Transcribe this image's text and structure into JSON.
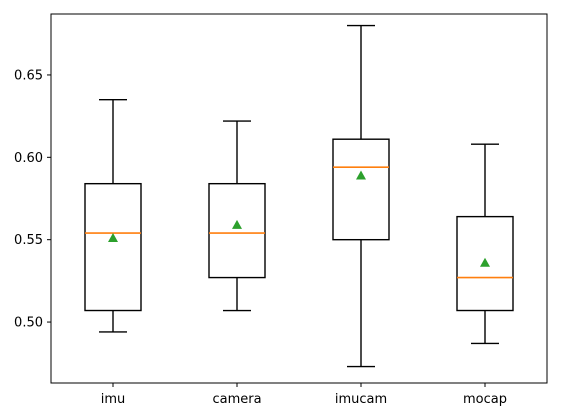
{
  "chart_data": {
    "type": "box",
    "title": "",
    "xlabel": "",
    "ylabel": "",
    "categories": [
      "imu",
      "camera",
      "imucam",
      "mocap"
    ],
    "ylim": [
      0.463,
      0.687
    ],
    "yticks": [
      0.5,
      0.55,
      0.6,
      0.65
    ],
    "ytick_labels": [
      "0.50",
      "0.55",
      "0.60",
      "0.65"
    ],
    "grid": false,
    "boxes": [
      {
        "category": "imu",
        "whisker_low": 0.494,
        "q1": 0.507,
        "median": 0.554,
        "q3": 0.584,
        "whisker_high": 0.635,
        "mean": 0.551
      },
      {
        "category": "camera",
        "whisker_low": 0.507,
        "q1": 0.527,
        "median": 0.554,
        "q3": 0.584,
        "whisker_high": 0.622,
        "mean": 0.559
      },
      {
        "category": "imucam",
        "whisker_low": 0.473,
        "q1": 0.55,
        "median": 0.594,
        "q3": 0.611,
        "whisker_high": 0.68,
        "mean": 0.589
      },
      {
        "category": "mocap",
        "whisker_low": 0.487,
        "q1": 0.507,
        "median": 0.527,
        "q3": 0.564,
        "whisker_high": 0.608,
        "mean": 0.536
      }
    ],
    "colors": {
      "median": "#ff7f0e",
      "mean_marker": "#2ca02c",
      "box": "#000000"
    },
    "mean_marker_shape": "triangle-up"
  }
}
